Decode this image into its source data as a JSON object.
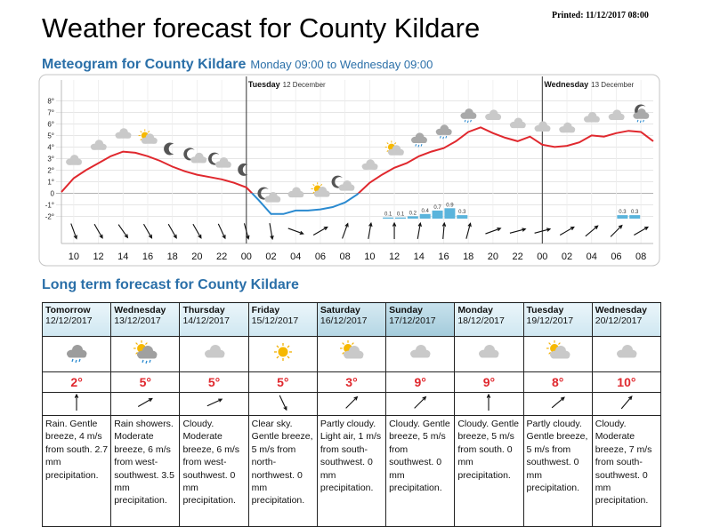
{
  "header": {
    "title": "Weather forecast for County Kildare",
    "printed": "Printed: 11/12/2017 08:00"
  },
  "meteogram": {
    "title": "Meteogram for County Kildare",
    "subtitle": "Monday 09:00 to Wednesday 09:00"
  },
  "chart_data": {
    "type": "meteogram",
    "xlim": [
      0,
      48
    ],
    "xticks": [
      {
        "value": 1,
        "label": "10"
      },
      {
        "value": 3,
        "label": "12"
      },
      {
        "value": 5,
        "label": "14"
      },
      {
        "value": 7,
        "label": "16"
      },
      {
        "value": 9,
        "label": "18"
      },
      {
        "value": 11,
        "label": "20"
      },
      {
        "value": 13,
        "label": "22"
      },
      {
        "value": 15,
        "label": "00"
      },
      {
        "value": 17,
        "label": "02"
      },
      {
        "value": 19,
        "label": "04"
      },
      {
        "value": 21,
        "label": "06"
      },
      {
        "value": 23,
        "label": "08"
      },
      {
        "value": 25,
        "label": "10"
      },
      {
        "value": 27,
        "label": "12"
      },
      {
        "value": 29,
        "label": "14"
      },
      {
        "value": 31,
        "label": "16"
      },
      {
        "value": 33,
        "label": "18"
      },
      {
        "value": 35,
        "label": "20"
      },
      {
        "value": 37,
        "label": "22"
      },
      {
        "value": 39,
        "label": "00"
      },
      {
        "value": 41,
        "label": "02"
      },
      {
        "value": 43,
        "label": "04"
      },
      {
        "value": 45,
        "label": "06"
      },
      {
        "value": 47,
        "label": "08"
      }
    ],
    "ylim": [
      -2.2,
      9.8
    ],
    "yticks": [
      {
        "value": -2,
        "label": "-2°"
      },
      {
        "value": -1,
        "label": "-1°"
      },
      0,
      {
        "value": 1,
        "label": "1°"
      },
      {
        "value": 2,
        "label": "2°"
      },
      {
        "value": 3,
        "label": "3°"
      },
      {
        "value": 4,
        "label": "4°"
      },
      {
        "value": 5,
        "label": "5°"
      },
      {
        "value": 6,
        "label": "6°"
      },
      {
        "value": 7,
        "label": "7°"
      },
      {
        "value": 8,
        "label": "8°"
      }
    ],
    "y2lim": [
      0,
      12
    ],
    "grid": true,
    "day_markers": [
      {
        "x": 15,
        "day": "Tuesday",
        "date": "12 December"
      },
      {
        "x": 39,
        "day": "Wednesday",
        "date": "13 December"
      }
    ],
    "temperature": {
      "color": "#e0282e",
      "color_below_zero": "#2a8ad0",
      "x": [
        0,
        1,
        2,
        3,
        4,
        5,
        6,
        7,
        8,
        9,
        10,
        11,
        12,
        13,
        14,
        15,
        16,
        17,
        18,
        19,
        20,
        21,
        22,
        23,
        24,
        25,
        26,
        27,
        28,
        29,
        30,
        31,
        32,
        33,
        34,
        35,
        36,
        37,
        38,
        39,
        40,
        41,
        42,
        43,
        44,
        45,
        46,
        47,
        48
      ],
      "values": [
        0.1,
        1.3,
        2.0,
        2.6,
        3.2,
        3.6,
        3.5,
        3.2,
        2.8,
        2.3,
        1.9,
        1.6,
        1.4,
        1.2,
        0.9,
        0.5,
        -0.6,
        -1.8,
        -1.8,
        -1.5,
        -1.5,
        -1.4,
        -1.2,
        -0.8,
        -0.1,
        0.9,
        1.6,
        2.2,
        2.6,
        3.2,
        3.6,
        3.9,
        4.5,
        5.3,
        5.7,
        5.2,
        4.8,
        4.5,
        4.9,
        4.2,
        4.0,
        4.1,
        4.4,
        5.0,
        4.9,
        5.2,
        5.4,
        5.3,
        4.5
      ]
    },
    "precipitation": {
      "color": "#5ab4dc",
      "axis": "y2",
      "x": [
        27,
        28,
        29,
        30,
        31,
        32,
        33,
        46,
        47
      ],
      "values": [
        0.1,
        0.1,
        0.2,
        0.4,
        0.7,
        0.9,
        0.3,
        0.3,
        0.3
      ]
    },
    "wind": {
      "x": [
        1,
        3,
        5,
        7,
        9,
        11,
        13,
        15,
        17,
        19,
        21,
        23,
        25,
        27,
        29,
        31,
        33,
        35,
        37,
        39,
        41,
        43,
        45,
        47
      ],
      "direction": [
        160,
        150,
        145,
        150,
        150,
        150,
        155,
        165,
        170,
        110,
        60,
        20,
        10,
        0,
        10,
        5,
        15,
        70,
        75,
        75,
        60,
        50,
        45,
        60
      ]
    }
  },
  "long_term": {
    "title": "Long term forecast for County Kildare",
    "days": [
      {
        "day": "Tomorrow",
        "date": "12/12/2017",
        "temperature": "2°",
        "description": "Rain. Gentle breeze, 4 m/s from south. 2.7 mm precipitation."
      },
      {
        "day": "Wednesday",
        "date": "13/12/2017",
        "temperature": "5°",
        "description": "Rain showers. Moderate breeze, 6 m/s from west-southwest. 3.5 mm precipitation."
      },
      {
        "day": "Thursday",
        "date": "14/12/2017",
        "temperature": "5°",
        "description": "Cloudy. Moderate breeze, 6 m/s from west-southwest. 0 mm precipitation."
      },
      {
        "day": "Friday",
        "date": "15/12/2017",
        "temperature": "5°",
        "description": "Clear sky. Gentle breeze, 5 m/s from north-northwest. 0 mm precipitation."
      },
      {
        "day": "Saturday",
        "date": "16/12/2017",
        "temperature": "3°",
        "description": "Partly cloudy. Light air, 1 m/s from south-southwest. 0 mm precipitation."
      },
      {
        "day": "Sunday",
        "date": "17/12/2017",
        "temperature": "9°",
        "description": "Cloudy. Gentle breeze, 5 m/s from southwest. 0 mm precipitation."
      },
      {
        "day": "Monday",
        "date": "18/12/2017",
        "temperature": "9°",
        "description": "Cloudy. Gentle breeze, 5 m/s from south. 0 mm precipitation."
      },
      {
        "day": "Tuesday",
        "date": "19/12/2017",
        "temperature": "8°",
        "description": "Partly cloudy. Gentle breeze, 5 m/s from southwest. 0 mm precipitation."
      },
      {
        "day": "Wednesday",
        "date": "20/12/2017",
        "temperature": "10°",
        "description": "Cloudy. Moderate breeze, 7 m/s from south-southwest. 0 mm precipitation."
      }
    ]
  }
}
